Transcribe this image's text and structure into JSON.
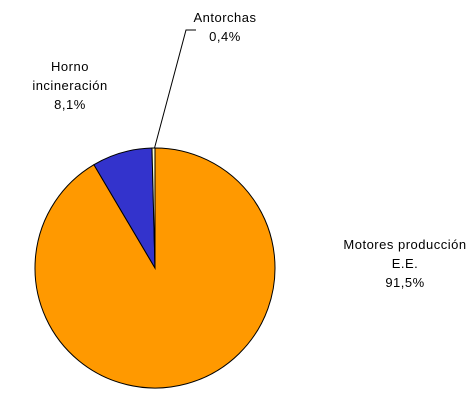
{
  "chart_data": {
    "type": "pie",
    "categories": [
      "Motores producción E.E.",
      "Horno incineración",
      "Antorchas"
    ],
    "values": [
      91.5,
      8.1,
      0.4
    ],
    "value_labels": [
      "91,5%",
      "8,1%",
      "0,4%"
    ],
    "colors": [
      "#ff9900",
      "#3333cc",
      "#ffffcc"
    ]
  }
}
